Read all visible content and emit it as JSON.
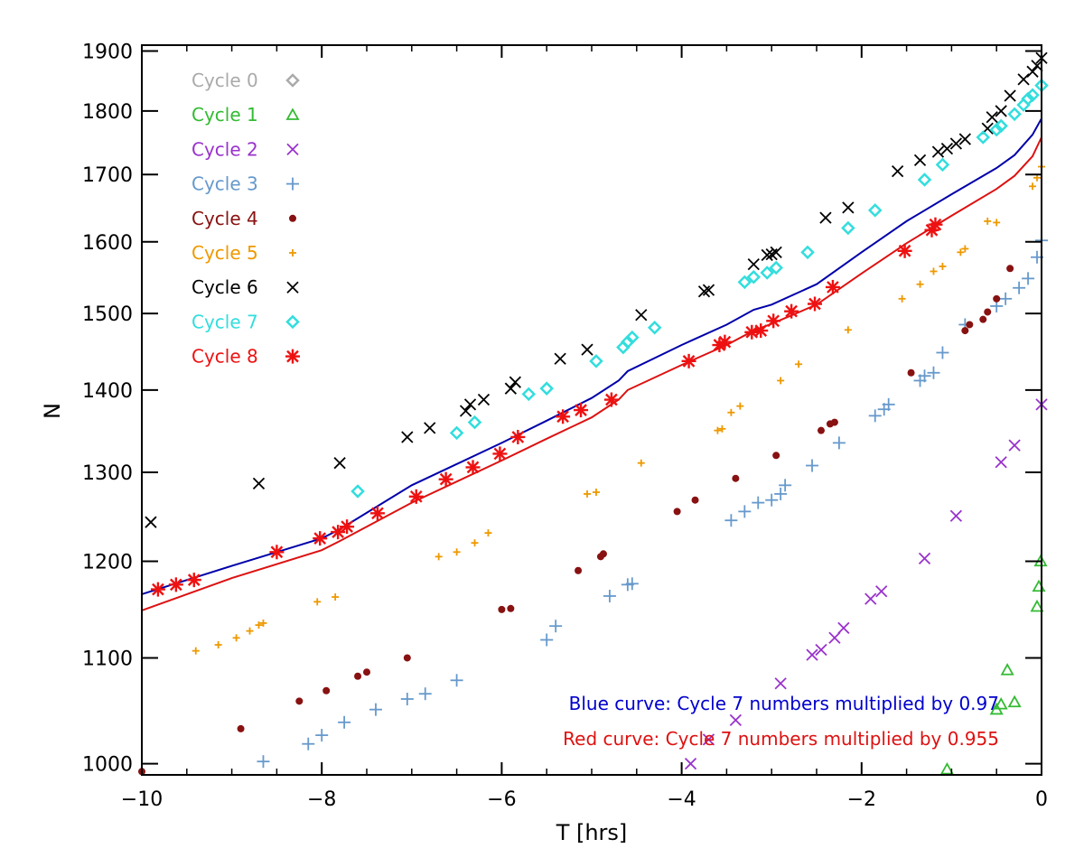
{
  "chart_data": {
    "type": "scatter",
    "xlabel": "T [hrs]",
    "ylabel": "N",
    "xlim": [
      -10,
      0
    ],
    "ylim": [
      990,
      1910
    ],
    "y_scale": "log",
    "x_ticks": [
      -10,
      -8,
      -6,
      -4,
      -2,
      0
    ],
    "x_tick_labels": [
      "−10",
      "−8",
      "−6",
      "−4",
      "−2",
      "0"
    ],
    "y_ticks": [
      1000,
      1100,
      1200,
      1300,
      1400,
      1500,
      1600,
      1700,
      1800,
      1900
    ],
    "y_tick_labels": [
      "1000",
      "1100",
      "1200",
      "1300",
      "1400",
      "1500",
      "1600",
      "1700",
      "1800",
      "1900"
    ],
    "legend_position": "top-left",
    "series": [
      {
        "name": "Cycle 0",
        "color": "#aaaaaa",
        "marker": "diamond",
        "x": [],
        "y": []
      },
      {
        "name": "Cycle 1",
        "color": "#33bb33",
        "marker": "triangle",
        "x": [
          -1.05,
          -0.38,
          -0.5,
          -0.45,
          -0.3,
          -0.05,
          -0.03,
          -0.01
        ],
        "y": [
          995,
          1088,
          1050,
          1055,
          1057,
          1152,
          1173,
          1200
        ]
      },
      {
        "name": "Cycle 2",
        "color": "#9933cc",
        "marker": "x",
        "x": [
          -3.9,
          -3.7,
          -3.4,
          -2.9,
          -2.55,
          -2.45,
          -2.3,
          -2.2,
          -1.9,
          -1.78,
          -1.3,
          -0.95,
          -0.45,
          -0.3,
          0.0
        ],
        "y": [
          1000,
          1022,
          1040,
          1075,
          1103,
          1108,
          1120,
          1130,
          1160,
          1168,
          1203,
          1250,
          1312,
          1332,
          1382
        ]
      },
      {
        "name": "Cycle 3",
        "color": "#6699cc",
        "marker": "plus",
        "x": [
          -8.65,
          -8.15,
          -8.0,
          -7.75,
          -7.4,
          -7.05,
          -6.85,
          -6.5,
          -5.5,
          -5.4,
          -4.8,
          -4.6,
          -4.55,
          -3.45,
          -3.3,
          -3.15,
          -3.0,
          -2.9,
          -2.85,
          -2.55,
          -2.25,
          -1.85,
          -1.75,
          -1.7,
          -1.35,
          -1.3,
          -1.2,
          -1.1,
          -0.85,
          -0.5,
          -0.4,
          -0.25,
          -0.15,
          -0.05,
          0.0
        ],
        "y": [
          1002,
          1018,
          1026,
          1038,
          1050,
          1060,
          1065,
          1078,
          1118,
          1132,
          1163,
          1175,
          1176,
          1245,
          1255,
          1265,
          1268,
          1275,
          1285,
          1308,
          1335,
          1368,
          1376,
          1382,
          1412,
          1418,
          1422,
          1448,
          1485,
          1510,
          1520,
          1535,
          1548,
          1578,
          1602
        ]
      },
      {
        "name": "Cycle 4",
        "color": "#881111",
        "marker": "dot",
        "x": [
          -10.0,
          -8.9,
          -8.25,
          -7.95,
          -7.6,
          -7.5,
          -7.05,
          -6.0,
          -5.9,
          -5.15,
          -4.9,
          -4.87,
          -4.05,
          -3.85,
          -3.4,
          -2.95,
          -2.45,
          -2.35,
          -2.3,
          -1.45,
          -0.85,
          -0.8,
          -0.65,
          -0.6,
          -0.5,
          -0.35
        ],
        "y": [
          993,
          1032,
          1058,
          1068,
          1082,
          1086,
          1100,
          1149,
          1150,
          1190,
          1205,
          1208,
          1255,
          1268,
          1293,
          1320,
          1350,
          1358,
          1360,
          1422,
          1477,
          1485,
          1492,
          1502,
          1520,
          1562
        ]
      },
      {
        "name": "Cycle 5",
        "color": "#ee9900",
        "marker": "smallplus",
        "x": [
          -9.4,
          -9.15,
          -8.95,
          -8.8,
          -8.7,
          -8.65,
          -8.05,
          -7.85,
          -6.7,
          -6.5,
          -6.3,
          -6.15,
          -5.05,
          -4.95,
          -4.45,
          -3.6,
          -3.55,
          -3.45,
          -3.35,
          -2.9,
          -2.7,
          -2.15,
          -1.55,
          -1.35,
          -1.2,
          -1.1,
          -0.9,
          -0.85,
          -0.6,
          -0.5,
          -0.1,
          -0.05,
          0.0
        ],
        "y": [
          1107,
          1113,
          1120,
          1127,
          1133,
          1135,
          1157,
          1162,
          1205,
          1210,
          1220,
          1231,
          1275,
          1277,
          1311,
          1350,
          1352,
          1372,
          1380,
          1412,
          1433,
          1478,
          1520,
          1540,
          1558,
          1565,
          1585,
          1590,
          1630,
          1628,
          1682,
          1695,
          1712
        ]
      },
      {
        "name": "Cycle 6",
        "color": "#000000",
        "marker": "x",
        "x": [
          -9.9,
          -8.7,
          -7.8,
          -7.05,
          -6.8,
          -6.4,
          -6.35,
          -6.2,
          -5.9,
          -5.85,
          -5.35,
          -5.05,
          -4.45,
          -3.75,
          -3.7,
          -3.2,
          -3.05,
          -3.0,
          -2.95,
          -2.4,
          -2.15,
          -1.6,
          -1.35,
          -1.15,
          -1.05,
          -0.95,
          -0.85,
          -0.6,
          -0.55,
          -0.45,
          -0.35,
          -0.2,
          -0.1,
          -0.05,
          0.0
        ],
        "y": [
          1243,
          1287,
          1311,
          1342,
          1353,
          1374,
          1382,
          1388,
          1402,
          1410,
          1440,
          1452,
          1498,
          1530,
          1532,
          1568,
          1581,
          1582,
          1585,
          1635,
          1650,
          1705,
          1722,
          1735,
          1740,
          1748,
          1755,
          1772,
          1790,
          1800,
          1825,
          1852,
          1865,
          1875,
          1888
        ]
      },
      {
        "name": "Cycle 7",
        "color": "#33dddd",
        "marker": "diamond",
        "x": [
          -7.6,
          -6.5,
          -6.3,
          -5.7,
          -5.5,
          -4.95,
          -4.65,
          -4.6,
          -4.55,
          -4.3,
          -3.3,
          -3.2,
          -3.05,
          -2.95,
          -2.6,
          -2.15,
          -1.85,
          -1.3,
          -1.1,
          -0.65,
          -0.5,
          -0.45,
          -0.3,
          -0.2,
          -0.15,
          -0.1,
          0.0
        ],
        "y": [
          1278,
          1347,
          1360,
          1395,
          1402,
          1437,
          1455,
          1462,
          1468,
          1481,
          1543,
          1550,
          1556,
          1563,
          1585,
          1620,
          1646,
          1692,
          1715,
          1758,
          1770,
          1776,
          1795,
          1810,
          1820,
          1826,
          1842
        ]
      },
      {
        "name": "Cycle 8",
        "color": "#ee1111",
        "marker": "asterisk",
        "x": [
          -9.82,
          -9.62,
          -9.42,
          -8.5,
          -8.02,
          -7.82,
          -7.72,
          -7.38,
          -6.95,
          -6.62,
          -6.32,
          -6.02,
          -5.82,
          -5.32,
          -5.12,
          -4.78,
          -3.92,
          -3.58,
          -3.52,
          -3.22,
          -3.12,
          -2.98,
          -2.78,
          -2.52,
          -2.32,
          -1.52,
          -1.22,
          -1.18
        ],
        "y": [
          1170,
          1175,
          1180,
          1210,
          1225,
          1232,
          1238,
          1253,
          1272,
          1292,
          1306,
          1322,
          1342,
          1367,
          1375,
          1388,
          1437,
          1458,
          1462,
          1475,
          1477,
          1490,
          1503,
          1513,
          1536,
          1587,
          1617,
          1625
        ]
      }
    ],
    "curves": [
      {
        "color": "#0000aa",
        "x": [
          -10.0,
          -9.0,
          -8.0,
          -7.8,
          -7.0,
          -6.0,
          -5.5,
          -5.0,
          -4.7,
          -4.6,
          -4.0,
          -3.5,
          -3.2,
          -3.0,
          -2.5,
          -2.0,
          -1.5,
          -1.0,
          -0.5,
          -0.3,
          -0.1,
          0.0
        ],
        "y": [
          1165,
          1195,
          1225,
          1235,
          1285,
          1335,
          1362,
          1390,
          1412,
          1424,
          1458,
          1485,
          1505,
          1512,
          1540,
          1585,
          1630,
          1670,
          1710,
          1730,
          1762,
          1788
        ]
      },
      {
        "color": "#dd1111",
        "x": [
          -10.0,
          -9.0,
          -8.0,
          -7.8,
          -7.0,
          -6.0,
          -5.5,
          -5.0,
          -4.7,
          -4.6,
          -4.0,
          -3.5,
          -3.2,
          -3.0,
          -2.5,
          -2.0,
          -1.5,
          -1.0,
          -0.5,
          -0.3,
          -0.1,
          0.0
        ],
        "y": [
          1148,
          1182,
          1212,
          1222,
          1265,
          1314,
          1340,
          1366,
          1388,
          1400,
          1432,
          1458,
          1477,
          1486,
          1512,
          1555,
          1598,
          1638,
          1678,
          1698,
          1728,
          1758
        ]
      }
    ],
    "annotations": [
      {
        "text": "Blue curve: Cycle 7 numbers multiplied by 0.97",
        "color": "#0000cc"
      },
      {
        "text": "Red curve: Cycle 7 numbers multiplied by 0.955",
        "color": "#dd1111"
      }
    ]
  }
}
